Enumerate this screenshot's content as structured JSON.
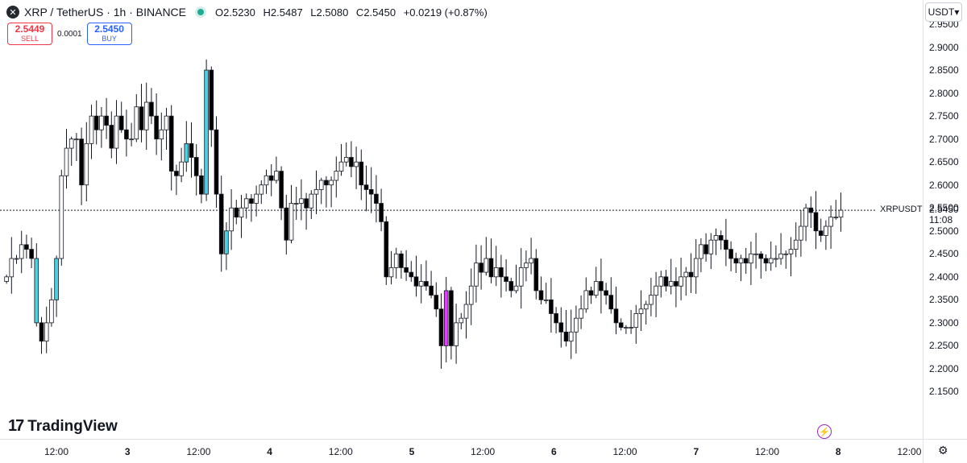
{
  "header": {
    "symbol_icon": "xrp-logo-icon",
    "symbol_icon_glyph": "✕",
    "title": "XRP / TetherUS · 1h · BINANCE",
    "ohlc": [
      {
        "k": "O",
        "v": "2.5230"
      },
      {
        "k": "H",
        "v": "2.5487"
      },
      {
        "k": "L",
        "v": "2.5080"
      },
      {
        "k": "C",
        "v": "2.5450"
      }
    ],
    "change": "+0.0219 (+0.87%)",
    "colors": {
      "up": "#ffffff",
      "down": "#000000",
      "live": "#22ab94"
    }
  },
  "trade": {
    "sell_price": "2.5449",
    "sell_label": "SELL",
    "spread": "0.0001",
    "buy_price": "2.5450",
    "buy_label": "BUY"
  },
  "currency": "USDT",
  "currency_caret": "▾",
  "last": {
    "name": "XRPUSDT",
    "price": "2.5450",
    "countdown": "11:08"
  },
  "brand": "TradingView",
  "brand_mark": "17",
  "bolt_glyph": "⚡",
  "settings_glyph": "⚙",
  "chart_data": {
    "type": "candlestick",
    "ylim": [
      2.1,
      2.95
    ],
    "yticks": [
      "2.1500",
      "2.2000",
      "2.2500",
      "2.3000",
      "2.3500",
      "2.4000",
      "2.4500",
      "2.5000",
      "2.5500",
      "2.6000",
      "2.6500",
      "2.7000",
      "2.7500",
      "2.8000",
      "2.8500",
      "2.9000",
      "2.9500"
    ],
    "xticks": [
      {
        "label": "12:00",
        "day": false
      },
      {
        "label": "3",
        "day": true
      },
      {
        "label": "12:00",
        "day": false
      },
      {
        "label": "4",
        "day": true
      },
      {
        "label": "12:00",
        "day": false
      },
      {
        "label": "5",
        "day": true
      },
      {
        "label": "12:00",
        "day": false
      },
      {
        "label": "6",
        "day": true
      },
      {
        "label": "12:00",
        "day": false
      },
      {
        "label": "7",
        "day": true
      },
      {
        "label": "12:00",
        "day": false
      },
      {
        "label": "8",
        "day": true
      },
      {
        "label": "12:00",
        "day": false
      }
    ],
    "highlights": [
      {
        "index": 6,
        "color": "#4dd0e1"
      },
      {
        "index": 10,
        "color": "#4dd0e1"
      },
      {
        "index": 36,
        "color": "#4dd0e1"
      },
      {
        "index": 40,
        "color": "#4dd0e1"
      },
      {
        "index": 44,
        "color": "#4dd0e1"
      },
      {
        "index": 88,
        "color": "#e040fb"
      }
    ],
    "close": [
      2.4,
      2.44,
      2.44,
      2.47,
      2.46,
      2.44,
      2.3,
      2.26,
      2.3,
      2.35,
      2.44,
      2.62,
      2.68,
      2.7,
      2.7,
      2.6,
      2.69,
      2.75,
      2.72,
      2.75,
      2.73,
      2.68,
      2.75,
      2.72,
      2.7,
      2.7,
      2.77,
      2.72,
      2.78,
      2.75,
      2.7,
      2.72,
      2.75,
      2.63,
      2.62,
      2.65,
      2.69,
      2.66,
      2.62,
      2.58,
      2.85,
      2.72,
      2.58,
      2.45,
      2.5,
      2.55,
      2.53,
      2.55,
      2.57,
      2.56,
      2.58,
      2.6,
      2.62,
      2.61,
      2.63,
      2.55,
      2.48,
      2.56,
      2.56,
      2.57,
      2.55,
      2.58,
      2.59,
      2.61,
      2.6,
      2.61,
      2.63,
      2.65,
      2.66,
      2.64,
      2.65,
      2.6,
      2.59,
      2.58,
      2.56,
      2.52,
      2.4,
      2.42,
      2.45,
      2.42,
      2.41,
      2.4,
      2.38,
      2.39,
      2.38,
      2.36,
      2.33,
      2.25,
      2.37,
      2.25,
      2.3,
      2.31,
      2.34,
      2.38,
      2.43,
      2.41,
      2.44,
      2.4,
      2.42,
      2.4,
      2.39,
      2.37,
      2.38,
      2.42,
      2.43,
      2.44,
      2.37,
      2.35,
      2.35,
      2.32,
      2.3,
      2.28,
      2.26,
      2.28,
      2.31,
      2.33,
      2.37,
      2.36,
      2.39,
      2.37,
      2.36,
      2.33,
      2.3,
      2.29,
      2.29,
      2.29,
      2.32,
      2.33,
      2.34,
      2.36,
      2.38,
      2.4,
      2.38,
      2.39,
      2.38,
      2.4,
      2.41,
      2.4,
      2.44,
      2.47,
      2.45,
      2.48,
      2.49,
      2.48,
      2.46,
      2.44,
      2.43,
      2.44,
      2.43,
      2.45,
      2.45,
      2.44,
      2.43,
      2.44,
      2.44,
      2.45,
      2.45,
      2.46,
      2.48,
      2.51,
      2.55,
      2.54,
      2.5,
      2.49,
      2.51,
      2.53,
      2.53,
      2.545
    ]
  }
}
